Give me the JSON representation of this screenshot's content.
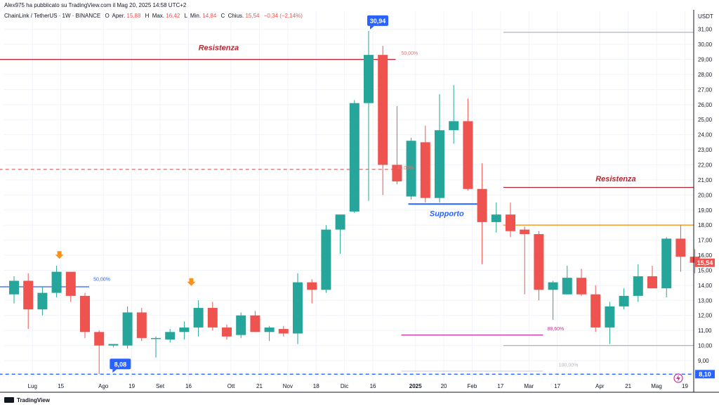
{
  "header": {
    "publisher": "Alex975 ha pubblicato su TradingView.com il Mag 20, 2025 14:58 UTC+2",
    "symbol_line": "ChainLink / TetherUS · 1W · BINANCE",
    "ohlc": {
      "o_label": "O",
      "o_text": "Aper.",
      "o_value": "15,88",
      "h_label": "H",
      "h_text": "Max.",
      "h_value": "16,42",
      "l_label": "L",
      "l_text": "Min.",
      "l_value": "14,84",
      "c_label": "C",
      "c_text": "Chius.",
      "c_value": "15,54",
      "change": "−0,34 (−2,14%)"
    }
  },
  "footer": {
    "brand": "TradingView"
  },
  "colors": {
    "up": "#26a69a",
    "down": "#ef5350",
    "blue": "#2962ff",
    "resist": "#b22833",
    "orange": "#f7931a",
    "magenta": "#cc2f9f",
    "gray": "#b2b5be"
  },
  "chart_data": {
    "type": "candlestick",
    "title": "ChainLink / TetherUS · 1W · BINANCE",
    "currency_label": "USDT",
    "xlabel": "",
    "ylabel": "",
    "ylim": [
      7.6,
      32.2
    ],
    "grid": true,
    "y_ticks": [
      "9,00",
      "10,00",
      "11,00",
      "12,00",
      "13,00",
      "14,00",
      "15,00",
      "16,00",
      "17,00",
      "18,00",
      "19,00",
      "20,00",
      "21,00",
      "22,00",
      "23,00",
      "24,00",
      "25,00",
      "26,00",
      "27,00",
      "28,00",
      "29,00",
      "30,00",
      "31,00"
    ],
    "x_ticks": [
      {
        "label": "Lug",
        "week": 1.3
      },
      {
        "label": "15",
        "week": 3.3
      },
      {
        "label": "Ago",
        "week": 6.3
      },
      {
        "label": "19",
        "week": 8.3
      },
      {
        "label": "Set",
        "week": 10.3
      },
      {
        "label": "16",
        "week": 12.3
      },
      {
        "label": "Ott",
        "week": 15.3
      },
      {
        "label": "21",
        "week": 17.3
      },
      {
        "label": "Nov",
        "week": 19.3
      },
      {
        "label": "18",
        "week": 21.3
      },
      {
        "label": "Dic",
        "week": 23.3
      },
      {
        "label": "16",
        "week": 25.3
      },
      {
        "label": "2025",
        "week": 28.3
      },
      {
        "label": "20",
        "week": 30.3
      },
      {
        "label": "Feb",
        "week": 32.3
      },
      {
        "label": "17",
        "week": 34.3
      },
      {
        "label": "Mar",
        "week": 36.3
      },
      {
        "label": "17",
        "week": 38.3
      },
      {
        "label": "Apr",
        "week": 41.3
      },
      {
        "label": "21",
        "week": 43.3
      },
      {
        "label": "Mag",
        "week": 45.3
      },
      {
        "label": "19",
        "week": 47.3
      }
    ],
    "candles": [
      {
        "o": 13.4,
        "h": 14.6,
        "l": 12.8,
        "c": 14.3
      },
      {
        "o": 14.3,
        "h": 14.8,
        "l": 11.1,
        "c": 12.4
      },
      {
        "o": 12.4,
        "h": 13.9,
        "l": 12.0,
        "c": 13.5
      },
      {
        "o": 13.5,
        "h": 15.3,
        "l": 13.2,
        "c": 14.9
      },
      {
        "o": 14.9,
        "h": 14.9,
        "l": 12.9,
        "c": 13.3
      },
      {
        "o": 13.3,
        "h": 13.5,
        "l": 10.5,
        "c": 10.9
      },
      {
        "o": 10.9,
        "h": 11.0,
        "l": 8.1,
        "c": 10.0
      },
      {
        "o": 10.0,
        "h": 10.1,
        "l": 9.9,
        "c": 10.1
      },
      {
        "o": 10.0,
        "h": 12.6,
        "l": 9.8,
        "c": 12.2
      },
      {
        "o": 12.2,
        "h": 12.5,
        "l": 10.3,
        "c": 10.5
      },
      {
        "o": 10.5,
        "h": 10.6,
        "l": 9.2,
        "c": 10.5
      },
      {
        "o": 10.4,
        "h": 11.1,
        "l": 10.2,
        "c": 10.9
      },
      {
        "o": 10.9,
        "h": 11.6,
        "l": 10.4,
        "c": 11.2
      },
      {
        "o": 11.2,
        "h": 13.0,
        "l": 10.6,
        "c": 12.5
      },
      {
        "o": 12.5,
        "h": 12.9,
        "l": 11.0,
        "c": 11.2
      },
      {
        "o": 11.2,
        "h": 11.4,
        "l": 10.4,
        "c": 10.6
      },
      {
        "o": 10.7,
        "h": 12.2,
        "l": 10.5,
        "c": 12.0
      },
      {
        "o": 12.0,
        "h": 12.3,
        "l": 10.9,
        "c": 10.9
      },
      {
        "o": 10.9,
        "h": 11.3,
        "l": 10.3,
        "c": 11.2
      },
      {
        "o": 11.1,
        "h": 11.3,
        "l": 10.6,
        "c": 10.8
      },
      {
        "o": 10.8,
        "h": 14.8,
        "l": 10.1,
        "c": 14.2
      },
      {
        "o": 14.2,
        "h": 14.4,
        "l": 12.8,
        "c": 13.7
      },
      {
        "o": 13.7,
        "h": 18.0,
        "l": 13.5,
        "c": 17.7
      },
      {
        "o": 17.7,
        "h": 18.7,
        "l": 16.1,
        "c": 18.7
      },
      {
        "o": 18.9,
        "h": 26.3,
        "l": 18.8,
        "c": 26.1
      },
      {
        "o": 26.1,
        "h": 30.9,
        "l": 19.6,
        "c": 29.3
      },
      {
        "o": 29.3,
        "h": 29.9,
        "l": 20.0,
        "c": 22.0
      },
      {
        "o": 22.0,
        "h": 25.9,
        "l": 20.7,
        "c": 20.9
      },
      {
        "o": 19.9,
        "h": 23.8,
        "l": 19.7,
        "c": 23.6
      },
      {
        "o": 23.5,
        "h": 24.6,
        "l": 19.5,
        "c": 19.8
      },
      {
        "o": 19.8,
        "h": 26.7,
        "l": 19.5,
        "c": 24.3
      },
      {
        "o": 24.3,
        "h": 27.3,
        "l": 23.4,
        "c": 24.9
      },
      {
        "o": 24.9,
        "h": 26.4,
        "l": 20.3,
        "c": 20.4
      },
      {
        "o": 20.4,
        "h": 22.1,
        "l": 15.4,
        "c": 18.2
      },
      {
        "o": 18.2,
        "h": 19.5,
        "l": 17.5,
        "c": 18.7
      },
      {
        "o": 18.7,
        "h": 19.5,
        "l": 17.2,
        "c": 17.6
      },
      {
        "o": 17.7,
        "h": 17.9,
        "l": 13.4,
        "c": 17.4
      },
      {
        "o": 17.4,
        "h": 17.6,
        "l": 13.0,
        "c": 13.7
      },
      {
        "o": 13.7,
        "h": 14.3,
        "l": 11.7,
        "c": 14.2
      },
      {
        "o": 13.4,
        "h": 15.3,
        "l": 13.4,
        "c": 14.5
      },
      {
        "o": 14.5,
        "h": 15.1,
        "l": 13.3,
        "c": 13.4
      },
      {
        "o": 13.4,
        "h": 14.0,
        "l": 10.9,
        "c": 11.2
      },
      {
        "o": 11.2,
        "h": 12.9,
        "l": 10.1,
        "c": 12.6
      },
      {
        "o": 12.6,
        "h": 13.8,
        "l": 12.4,
        "c": 13.3
      },
      {
        "o": 13.3,
        "h": 15.4,
        "l": 12.9,
        "c": 14.6
      },
      {
        "o": 14.6,
        "h": 15.3,
        "l": 13.8,
        "c": 13.8
      },
      {
        "o": 13.8,
        "h": 17.2,
        "l": 13.2,
        "c": 17.1
      },
      {
        "o": 17.1,
        "h": 18.0,
        "l": 14.9,
        "c": 15.9
      },
      {
        "o": 15.9,
        "h": 16.4,
        "l": 14.8,
        "c": 15.5
      }
    ],
    "lines": [
      {
        "id": "resistenza-1",
        "price": 29.0,
        "from_week": -1.5,
        "to_week": 26.9,
        "color": "#b22833",
        "style": "solid"
      },
      {
        "id": "dashed-resistance",
        "price": 21.7,
        "from_week": -1.5,
        "to_week": 27.3,
        "color": "#e57373",
        "style": "dashed"
      },
      {
        "id": "supporto",
        "price": 19.4,
        "from_week": 27.8,
        "to_week": 33.3,
        "color": "#2962ff",
        "style": "solid"
      },
      {
        "id": "resistenza-2",
        "price": 20.5,
        "from_week": 34.5,
        "to_week": 49.8,
        "color": "#b22833",
        "style": "solid"
      },
      {
        "id": "orange-level",
        "price": 18.0,
        "from_week": 34.5,
        "to_week": 49.8,
        "color": "#f7931a",
        "style": "solid"
      },
      {
        "id": "fib-50-top",
        "price": 30.8,
        "from_week": 34.5,
        "to_week": 49.8,
        "color": "#b2b5be",
        "style": "solid"
      },
      {
        "id": "fib-100-bottom",
        "price": 10.0,
        "from_week": 34.5,
        "to_week": 49.8,
        "color": "#b2b5be",
        "style": "solid"
      },
      {
        "id": "fib-88",
        "price": 10.7,
        "from_week": 27.3,
        "to_week": 37.3,
        "color": "#cc2f9f",
        "style": "solid"
      },
      {
        "id": "fib-50-left",
        "price": 13.9,
        "from_week": -1.5,
        "to_week": 5.3,
        "color": "#2962ff",
        "style": "solid"
      },
      {
        "id": "low-dashed",
        "price": 8.1,
        "from_week": -1.5,
        "to_week": 49.8,
        "color": "#2962ff",
        "style": "dashed"
      },
      {
        "id": "faint-100",
        "price": 8.3,
        "from_week": 27.3,
        "to_week": 37.3,
        "color": "#d1d4dc",
        "style": "solid"
      }
    ],
    "annotations": [
      {
        "id": "resistenza-label-1",
        "text": "Resistenza",
        "week": 13.0,
        "price": 29.6,
        "color": "#b22833",
        "size": 11
      },
      {
        "id": "resistenza-label-2",
        "text": "Resistenza",
        "week": 41.0,
        "price": 20.9,
        "color": "#b22833",
        "size": 11
      },
      {
        "id": "supporto-label",
        "text": "Supporto",
        "week": 29.3,
        "price": 18.6,
        "color": "#2962ff",
        "size": 11
      },
      {
        "id": "fib-50-label-top",
        "text": "50,00%",
        "week": 27.3,
        "price": 29.3,
        "color": "#e57373",
        "size": 7
      },
      {
        "id": "fib-50-label-left",
        "text": "50,00%",
        "week": 5.6,
        "price": 14.3,
        "color": "#2962ff",
        "size": 7
      },
      {
        "id": "fib-88-label",
        "text": "88,60%",
        "week": 37.6,
        "price": 11.0,
        "color": "#cc2f9f",
        "size": 7
      },
      {
        "id": "fib-100-label",
        "text": "100,00%",
        "week": 38.4,
        "price": 8.6,
        "color": "#b2b5be",
        "size": 7
      },
      {
        "id": "faint-label",
        "text": "40,00%",
        "week": 27.0,
        "price": 21.7,
        "color": "#e57373",
        "size": 7
      }
    ],
    "price_tags": [
      {
        "id": "high-tag",
        "text": "30,94",
        "week": 25.0,
        "price": 30.9,
        "side": "above"
      },
      {
        "id": "low-tag",
        "text": "8,08",
        "week": 6.7,
        "price": 8.1,
        "side": "right"
      }
    ],
    "markers": [
      {
        "id": "orange-arrow-1",
        "week": 3.2,
        "price": 15.9
      },
      {
        "id": "orange-arrow-2",
        "week": 12.5,
        "price": 14.1
      }
    ],
    "axis_tags": [
      {
        "id": "last-price-tag",
        "text": "15,54",
        "price": 15.5,
        "color": "#ef5350"
      },
      {
        "id": "low-axis-tag",
        "text": "8,10",
        "price": 8.1,
        "color": "#2962ff"
      }
    ]
  }
}
